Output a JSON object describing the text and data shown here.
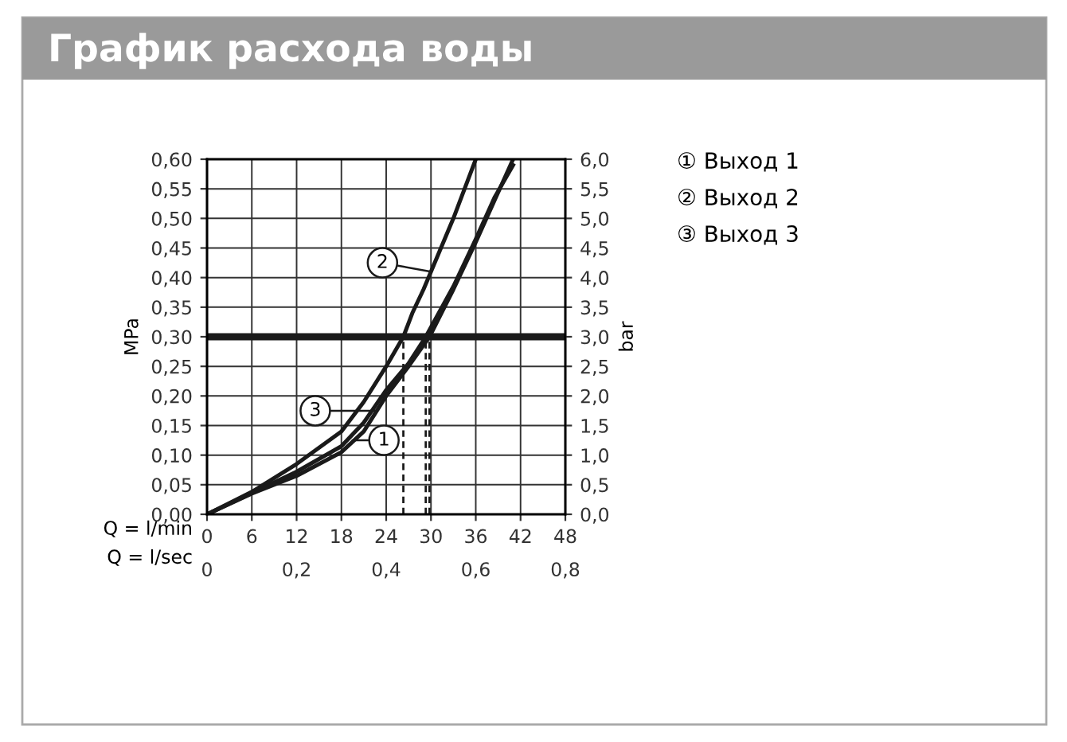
{
  "chart_data": {
    "type": "line",
    "title": "График расхода воды",
    "xlabel": "Q = l/min",
    "ylabel": "MPa",
    "y2label": "bar",
    "x2label": "Q = l/sec",
    "xlim": [
      0,
      48
    ],
    "xticks": [
      0,
      6,
      12,
      18,
      24,
      30,
      36,
      42,
      48
    ],
    "x2lim": [
      0,
      0.8
    ],
    "x2ticks": [
      0,
      {
        "value": 0.2,
        "label": "0,2"
      },
      {
        "value": 0.4,
        "label": "0,4"
      },
      {
        "value": 0.6,
        "label": "0,6"
      },
      {
        "value": 0.8,
        "label": "0,8"
      }
    ],
    "ylim": [
      0,
      0.6
    ],
    "yticks": [
      {
        "value": 0,
        "label": "0,00"
      },
      {
        "value": 0.05,
        "label": "0,05"
      },
      {
        "value": 0.1,
        "label": "0,10"
      },
      {
        "value": 0.15,
        "label": "0,15"
      },
      {
        "value": 0.2,
        "label": "0,20"
      },
      {
        "value": 0.25,
        "label": "0,25"
      },
      {
        "value": 0.3,
        "label": "0,30"
      },
      {
        "value": 0.35,
        "label": "0,35"
      },
      {
        "value": 0.4,
        "label": "0,40"
      },
      {
        "value": 0.45,
        "label": "0,45"
      },
      {
        "value": 0.5,
        "label": "0,50"
      },
      {
        "value": 0.55,
        "label": "0,55"
      },
      {
        "value": 0.6,
        "label": "0,60"
      }
    ],
    "y2lim": [
      0,
      6
    ],
    "y2ticks": [
      {
        "value": 0,
        "label": "0,0"
      },
      {
        "value": 0.5,
        "label": "0,5"
      },
      {
        "value": 1,
        "label": "1,0"
      },
      {
        "value": 1.5,
        "label": "1,5"
      },
      {
        "value": 2,
        "label": "2,0"
      },
      {
        "value": 2.5,
        "label": "2,5"
      },
      {
        "value": 3,
        "label": "3,0"
      },
      {
        "value": 3.5,
        "label": "3,5"
      },
      {
        "value": 4,
        "label": "4,0"
      },
      {
        "value": 4.5,
        "label": "4,5"
      },
      {
        "value": 5,
        "label": "5,0"
      },
      {
        "value": 5.5,
        "label": "5,5"
      },
      {
        "value": 6,
        "label": "6,0"
      }
    ],
    "grid": true,
    "marker": "none",
    "series": [
      {
        "color": "#1a1a1a",
        "x": [
          0,
          6,
          12,
          18,
          21,
          24,
          27,
          29.8,
          33,
          36,
          38.5,
          41
        ],
        "values": [
          0,
          0.035,
          0.065,
          0.105,
          0.14,
          0.2,
          0.25,
          0.3,
          0.38,
          0.46,
          0.53,
          0.6
        ]
      },
      {
        "color": "#1a1a1a",
        "x": [
          0,
          6,
          12,
          18,
          21,
          24,
          26.3,
          27.5,
          29,
          30,
          33,
          36
        ],
        "values": [
          0,
          0.038,
          0.085,
          0.14,
          0.19,
          0.25,
          0.3,
          0.34,
          0.38,
          0.41,
          0.5,
          0.6
        ]
      },
      {
        "color": "#1a1a1a",
        "x": [
          0,
          6,
          12,
          18,
          21,
          24,
          27,
          29.3,
          33,
          36,
          38.5,
          41
        ],
        "values": [
          0,
          0.036,
          0.072,
          0.115,
          0.155,
          0.21,
          0.255,
          0.3,
          0.385,
          0.465,
          0.535,
          0.59
        ]
      },
      {
        "color": "#1a1a1a",
        "line_style": "dashed",
        "x": [
          26.3,
          26.3
        ],
        "values": [
          0,
          0.3
        ]
      },
      {
        "color": "#1a1a1a",
        "line_style": "dashed",
        "x": [
          29.3,
          29.3
        ],
        "values": [
          0,
          0.3
        ]
      },
      {
        "color": "#1a1a1a",
        "line_style": "dashed",
        "x": [
          29.8,
          29.8
        ],
        "values": [
          0,
          0.3
        ]
      }
    ],
    "ref_lines": [
      {
        "axis": "y",
        "value": 0.3,
        "color": "#1a1a1a"
      }
    ],
    "annotations": [
      {
        "text": "1",
        "x": 19.5,
        "y": 0.125
      },
      {
        "text": "2",
        "x": 30,
        "y": 0.41
      },
      {
        "text": "3",
        "x": 22.5,
        "y": 0.175
      },
      "① Выход 1",
      "② Выход 2",
      "③ Выход 3"
    ]
  }
}
